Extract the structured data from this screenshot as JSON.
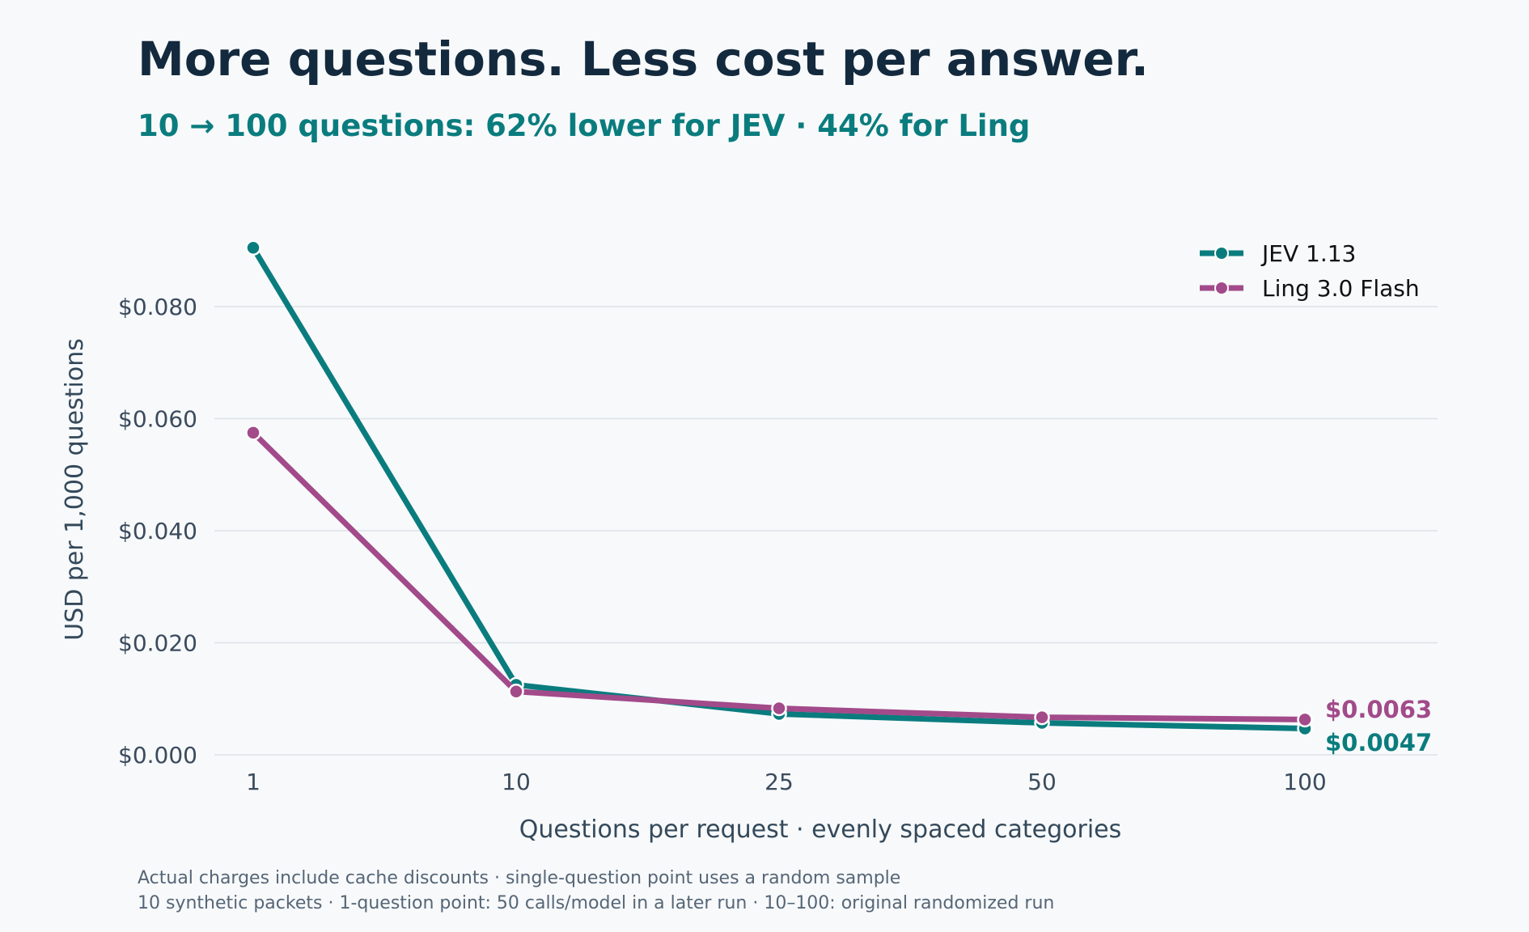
{
  "chart_data": {
    "type": "line",
    "title": "More questions. Less cost per answer.",
    "subtitle": "10 → 100 questions: 62% lower for JEV · 44% for Ling",
    "xlabel": "Questions per request · evenly spaced categories",
    "ylabel": "USD per 1,000 questions",
    "categories": [
      "1",
      "10",
      "25",
      "50",
      "100"
    ],
    "ylim": [
      0,
      0.09
    ],
    "yticks": [
      {
        "value": 0.0,
        "label": "$0.000"
      },
      {
        "value": 0.02,
        "label": "$0.020"
      },
      {
        "value": 0.04,
        "label": "$0.040"
      },
      {
        "value": 0.06,
        "label": "$0.060"
      },
      {
        "value": 0.08,
        "label": "$0.080"
      }
    ],
    "grid": "horizontal",
    "legend_position": "top-right",
    "series": [
      {
        "name": "JEV 1.13",
        "color": "#0a7c7e",
        "values": [
          0.0905,
          0.0125,
          0.0073,
          0.0057,
          0.0047
        ],
        "end_label": "$0.0047"
      },
      {
        "name": "Ling 3.0 Flash",
        "color": "#a24a8a",
        "values": [
          0.0575,
          0.0113,
          0.0083,
          0.0067,
          0.0063
        ],
        "end_label": "$0.0063"
      }
    ],
    "footnotes": [
      "Actual charges include cache discounts · single-question point uses a random sample",
      "10 synthetic packets · 1-question point: 50 calls/model in a later run · 10–100: original randomized run"
    ]
  }
}
